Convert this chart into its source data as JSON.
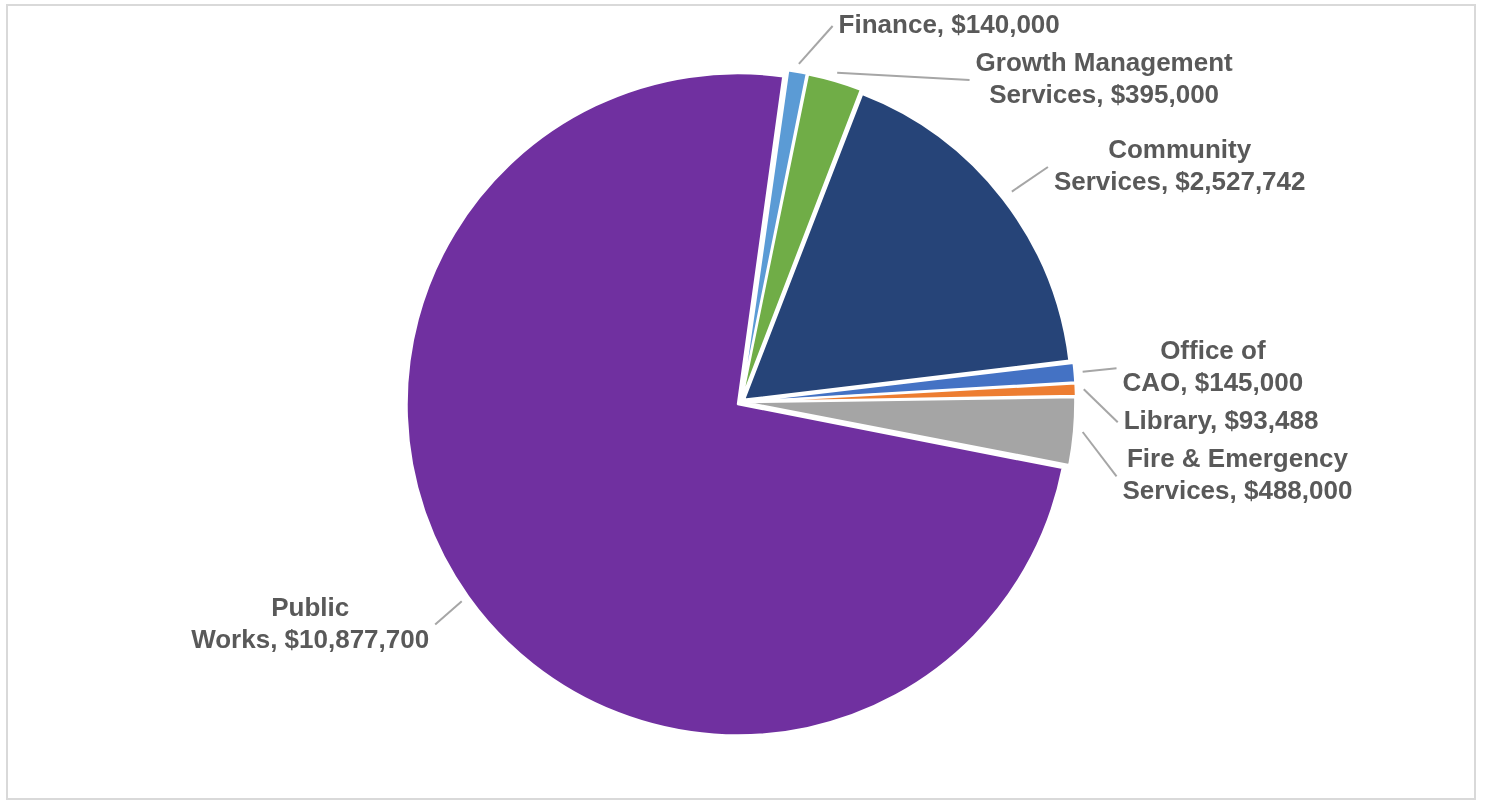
{
  "chart_data": {
    "type": "pie",
    "categories": [
      "Finance",
      "Growth Management Services",
      "Community Services",
      "Office of CAO",
      "Library",
      "Fire & Emergency Services",
      "Public Works"
    ],
    "values": [
      140000,
      395000,
      2527742,
      145000,
      93488,
      488000,
      10877700
    ],
    "value_labels": [
      "$140,000",
      "$395,000",
      "$2,527,742",
      "$145,000",
      "$93,488",
      "$488,000",
      "$10,877,700"
    ],
    "colors": [
      "#5b9bd5",
      "#70ad47",
      "#264478",
      "#4472c4",
      "#ed7d31",
      "#a5a5a5",
      "#7030a0"
    ]
  }
}
